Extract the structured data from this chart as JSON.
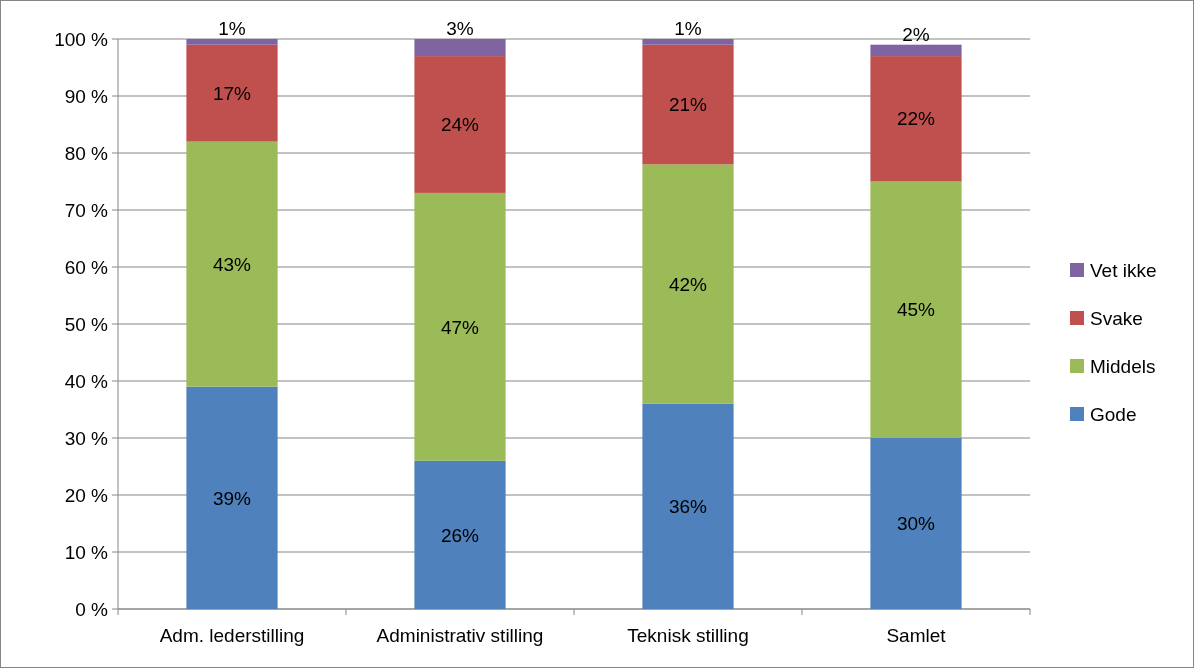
{
  "chart_data": {
    "type": "bar",
    "stacked": true,
    "categories": [
      "Adm. lederstilling",
      "Administrativ stilling",
      "Teknisk stilling",
      "Samlet"
    ],
    "series": [
      {
        "name": "Gode",
        "color": "#4f81bd",
        "values": [
          39,
          26,
          36,
          30
        ],
        "value_labels": [
          "39%",
          "26%",
          "36%",
          "30%"
        ]
      },
      {
        "name": "Middels",
        "color": "#9bbb59",
        "values": [
          43,
          47,
          42,
          45
        ],
        "value_labels": [
          "43%",
          "47%",
          "42%",
          "45%"
        ]
      },
      {
        "name": "Svake",
        "color": "#c0504d",
        "values": [
          17,
          24,
          21,
          22
        ],
        "value_labels": [
          "17%",
          "24%",
          "21%",
          "22%"
        ]
      },
      {
        "name": "Vet ikke",
        "color": "#8064a2",
        "values": [
          1,
          3,
          1,
          2
        ],
        "value_labels": [
          "1%",
          "3%",
          "1%",
          "2%"
        ]
      }
    ],
    "ylim": [
      0,
      100
    ],
    "yticks": [
      {
        "value": 0,
        "label": "0 %"
      },
      {
        "value": 10,
        "label": "10 %"
      },
      {
        "value": 20,
        "label": "20 %"
      },
      {
        "value": 30,
        "label": "30 %"
      },
      {
        "value": 40,
        "label": "40 %"
      },
      {
        "value": 50,
        "label": "50 %"
      },
      {
        "value": 60,
        "label": "60 %"
      },
      {
        "value": 70,
        "label": "70 %"
      },
      {
        "value": 80,
        "label": "80 %"
      },
      {
        "value": 90,
        "label": "90 %"
      },
      {
        "value": 100,
        "label": "100 %"
      }
    ],
    "grid": "y",
    "legend": "right"
  }
}
